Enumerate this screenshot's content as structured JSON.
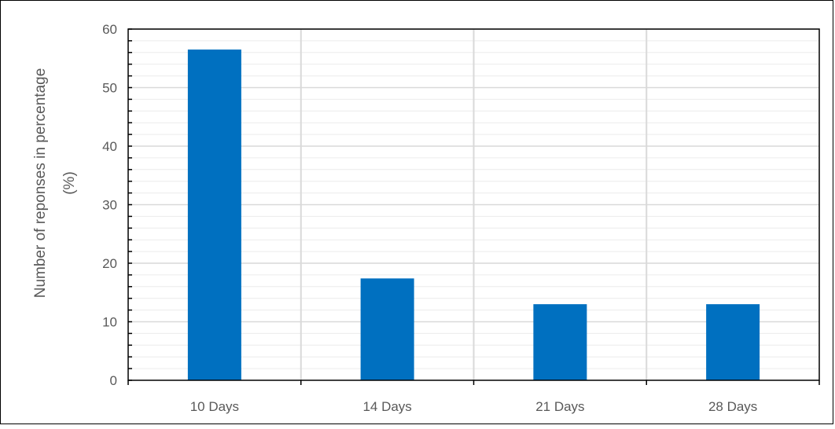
{
  "chart_data": {
    "type": "bar",
    "title": "",
    "categories": [
      "10 Days",
      "14 Days",
      "21 Days",
      "28 Days"
    ],
    "values": [
      56.5,
      17.4,
      13.0,
      13.0
    ],
    "xlabel": "",
    "ylabel_lines": [
      "Number of reponses in percentage",
      "(%)"
    ],
    "ylim": [
      0,
      60
    ],
    "yticks": [
      "0",
      "10",
      "20",
      "30",
      "40",
      "50",
      "60"
    ],
    "ytick_values": [
      0,
      10,
      20,
      30,
      40,
      50,
      60
    ],
    "minor_step": 2,
    "grid": true,
    "bar_color": "#0070C0",
    "grid_color": "#D9D9D9",
    "legend": "none"
  }
}
